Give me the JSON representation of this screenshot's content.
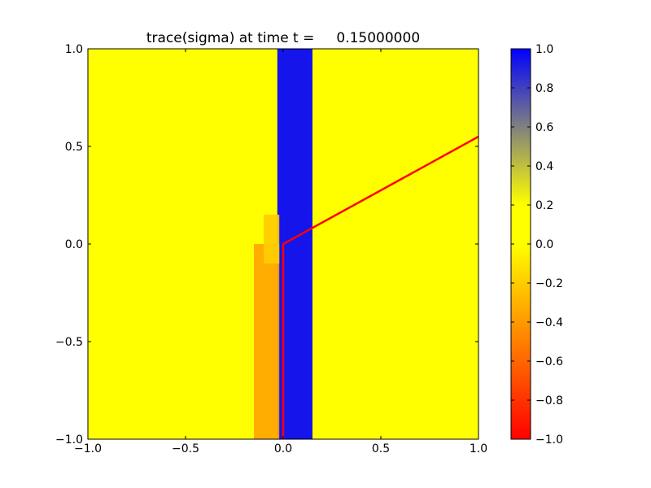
{
  "chart_data": {
    "type": "heatmap",
    "title": "trace(sigma) at time t =     0.15000000",
    "xlim": [
      -1.0,
      1.0
    ],
    "ylim": [
      -1.0,
      1.0
    ],
    "x_ticks": [
      -1.0,
      -0.5,
      0.0,
      0.5,
      1.0
    ],
    "x_tick_labels": [
      "−1.0",
      "−0.5",
      "0.0",
      "0.5",
      "1.0"
    ],
    "y_ticks": [
      -1.0,
      -0.5,
      0.0,
      0.5,
      1.0
    ],
    "y_tick_labels": [
      "−1.0",
      "−0.5",
      "0.0",
      "0.5",
      "1.0"
    ],
    "background_value": 0.0,
    "regions": [
      {
        "x": [
          -0.03,
          0.15
        ],
        "y": [
          -1.0,
          1.0
        ],
        "value": 1.0
      },
      {
        "x": [
          -0.15,
          -0.02
        ],
        "y": [
          -1.0,
          0.0
        ],
        "value": -0.35
      },
      {
        "x": [
          -0.1,
          -0.02
        ],
        "y": [
          -0.1,
          0.15
        ],
        "value": -0.2
      }
    ],
    "line": {
      "color": "#ff0000",
      "points": [
        [
          0.0,
          -1.0
        ],
        [
          0.0,
          0.0
        ],
        [
          1.0,
          0.55
        ]
      ]
    },
    "colorbar": {
      "min": -1.0,
      "max": 1.0,
      "ticks": [
        1.0,
        0.8,
        0.6,
        0.4,
        0.2,
        0.0,
        -0.2,
        -0.4,
        -0.6,
        -0.8,
        -1.0
      ],
      "tick_labels": [
        "1.0",
        "0.8",
        "0.6",
        "0.4",
        "0.2",
        "0.0",
        "−0.2",
        "−0.4",
        "−0.6",
        "−0.8",
        "−1.0"
      ],
      "colors": [
        {
          "value": -1.0,
          "color": "#ff0000"
        },
        {
          "value": -0.5,
          "color": "#ff8000"
        },
        {
          "value": 0.0,
          "color": "#ffff00"
        },
        {
          "value": 0.2,
          "color": "#ffff00"
        },
        {
          "value": 0.6,
          "color": "#808080"
        },
        {
          "value": 1.0,
          "color": "#0000ff"
        }
      ]
    }
  }
}
